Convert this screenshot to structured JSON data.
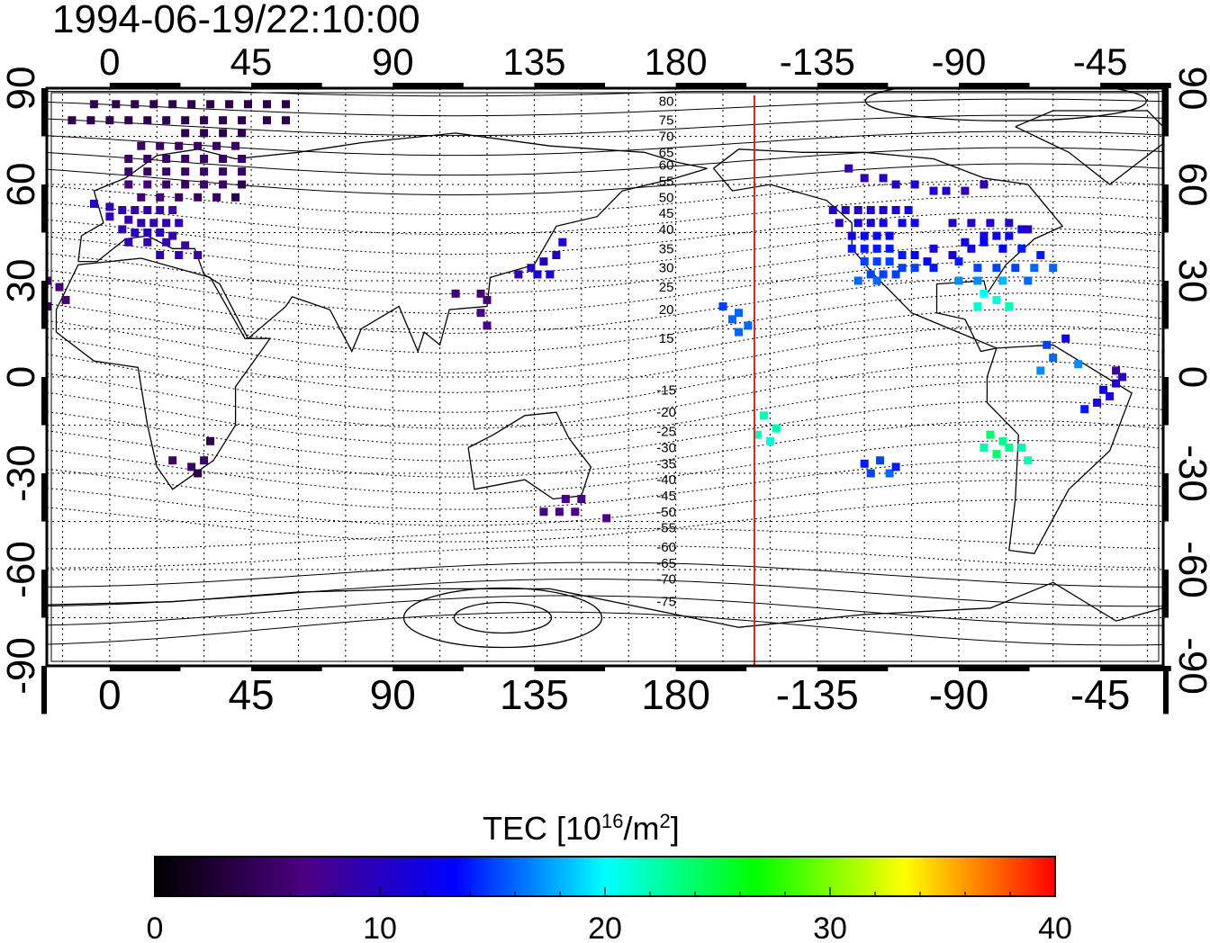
{
  "timestamp": "1994-06-19/22:10:00",
  "map": {
    "projection": "equirectangular",
    "x_tick_labels": [
      "0",
      "45",
      "90",
      "135",
      "180",
      "-135",
      "-90",
      "-45"
    ],
    "y_tick_labels": [
      "90",
      "60",
      "30",
      "0",
      "-30",
      "-60",
      "-90"
    ],
    "x_ticks_deg": [
      0,
      45,
      90,
      135,
      180,
      225,
      270,
      315
    ],
    "y_ticks_deg": [
      90,
      60,
      30,
      0,
      -30,
      -60,
      -90
    ],
    "lon_range": [
      -20,
      335
    ],
    "lat_range": [
      -90,
      90
    ],
    "grid_spacing_deg": 15,
    "grid": true,
    "marker_line_lon": 205,
    "marker_line_color": "#d42020",
    "contour_labels": [
      {
        "text": "80",
        "lat": 86
      },
      {
        "text": "75",
        "lat": 80
      },
      {
        "text": "70",
        "lat": 75
      },
      {
        "text": "65",
        "lat": 70
      },
      {
        "text": "60",
        "lat": 66
      },
      {
        "text": "55",
        "lat": 61
      },
      {
        "text": "50",
        "lat": 56
      },
      {
        "text": "45",
        "lat": 51
      },
      {
        "text": "40",
        "lat": 46
      },
      {
        "text": "35",
        "lat": 40
      },
      {
        "text": "30",
        "lat": 34
      },
      {
        "text": "25",
        "lat": 28
      },
      {
        "text": "20",
        "lat": 21
      },
      {
        "text": "15",
        "lat": 12
      },
      {
        "text": "-15",
        "lat": -4
      },
      {
        "text": "-20",
        "lat": -11
      },
      {
        "text": "-25",
        "lat": -17
      },
      {
        "text": "-30",
        "lat": -22
      },
      {
        "text": "-35",
        "lat": -27
      },
      {
        "text": "-40",
        "lat": -32
      },
      {
        "text": "-45",
        "lat": -37
      },
      {
        "text": "-50",
        "lat": -42
      },
      {
        "text": "-55",
        "lat": -47
      },
      {
        "text": "-60",
        "lat": -53
      },
      {
        "text": "-65",
        "lat": -58
      },
      {
        "text": "-70",
        "lat": -63
      },
      {
        "text": "-75",
        "lat": -70
      }
    ],
    "contour_label_lon": 177
  },
  "colorbar": {
    "title": "TEC  [10",
    "title_sup": "16",
    "title_mid": "/m",
    "title_sup2": "2",
    "title_end": "]",
    "min": 0,
    "max": 40,
    "tick_labels": [
      "0",
      "10",
      "20",
      "30",
      "40"
    ],
    "colors": [
      "#000000",
      "#4b0082",
      "#0000ff",
      "#00ffff",
      "#00ff00",
      "#ffff00",
      "#ff0000"
    ]
  },
  "tec_points": [
    [
      -5,
      85,
      4
    ],
    [
      2,
      85,
      4
    ],
    [
      8,
      85,
      4
    ],
    [
      14,
      85,
      4
    ],
    [
      20,
      85,
      4
    ],
    [
      26,
      85,
      4
    ],
    [
      32,
      85,
      4
    ],
    [
      38,
      85,
      4
    ],
    [
      44,
      85,
      4
    ],
    [
      50,
      85,
      4
    ],
    [
      56,
      85,
      4
    ],
    [
      -12,
      80,
      4
    ],
    [
      -6,
      80,
      4
    ],
    [
      0,
      80,
      4
    ],
    [
      6,
      80,
      4
    ],
    [
      12,
      80,
      4
    ],
    [
      18,
      80,
      4
    ],
    [
      24,
      80,
      4
    ],
    [
      30,
      80,
      4
    ],
    [
      36,
      80,
      4
    ],
    [
      42,
      80,
      4
    ],
    [
      50,
      80,
      4
    ],
    [
      56,
      80,
      4
    ],
    [
      24,
      76,
      4
    ],
    [
      30,
      76,
      4
    ],
    [
      36,
      76,
      4
    ],
    [
      42,
      76,
      4
    ],
    [
      10,
      72,
      5
    ],
    [
      16,
      72,
      5
    ],
    [
      22,
      72,
      5
    ],
    [
      28,
      72,
      5
    ],
    [
      34,
      72,
      5
    ],
    [
      40,
      72,
      5
    ],
    [
      6,
      68,
      5
    ],
    [
      12,
      68,
      5
    ],
    [
      18,
      68,
      5
    ],
    [
      24,
      68,
      5
    ],
    [
      30,
      68,
      5
    ],
    [
      36,
      68,
      5
    ],
    [
      42,
      68,
      5
    ],
    [
      6,
      64,
      5
    ],
    [
      12,
      64,
      5
    ],
    [
      18,
      64,
      5
    ],
    [
      24,
      64,
      5
    ],
    [
      30,
      64,
      5
    ],
    [
      36,
      64,
      5
    ],
    [
      42,
      64,
      5
    ],
    [
      6,
      60,
      6
    ],
    [
      12,
      60,
      6
    ],
    [
      18,
      60,
      5
    ],
    [
      24,
      60,
      5
    ],
    [
      30,
      60,
      5
    ],
    [
      36,
      60,
      5
    ],
    [
      42,
      60,
      4
    ],
    [
      10,
      56,
      6
    ],
    [
      16,
      56,
      6
    ],
    [
      22,
      56,
      5
    ],
    [
      28,
      56,
      5
    ],
    [
      34,
      56,
      5
    ],
    [
      40,
      56,
      4
    ],
    [
      -5,
      54,
      10
    ],
    [
      0,
      53,
      9
    ],
    [
      4,
      52,
      9
    ],
    [
      8,
      52,
      9
    ],
    [
      12,
      52,
      9
    ],
    [
      16,
      52,
      9
    ],
    [
      20,
      52,
      8
    ],
    [
      0,
      50,
      9
    ],
    [
      6,
      49,
      9
    ],
    [
      10,
      48,
      9
    ],
    [
      14,
      48,
      9
    ],
    [
      18,
      48,
      9
    ],
    [
      22,
      48,
      9
    ],
    [
      4,
      46,
      9
    ],
    [
      8,
      45,
      10
    ],
    [
      12,
      45,
      10
    ],
    [
      16,
      45,
      10
    ],
    [
      20,
      44,
      9
    ],
    [
      6,
      42,
      9
    ],
    [
      12,
      42,
      9
    ],
    [
      18,
      42,
      9
    ],
    [
      24,
      41,
      8
    ],
    [
      16,
      38,
      9
    ],
    [
      22,
      38,
      9
    ],
    [
      28,
      38,
      8
    ],
    [
      -20,
      30,
      6
    ],
    [
      -16,
      28,
      6
    ],
    [
      -14,
      24,
      6
    ],
    [
      -20,
      22,
      6
    ],
    [
      32,
      -20,
      4
    ],
    [
      20,
      -26,
      5
    ],
    [
      26,
      -28,
      5
    ],
    [
      30,
      -26,
      5
    ],
    [
      28,
      -30,
      4
    ],
    [
      110,
      26,
      6
    ],
    [
      118,
      26,
      6
    ],
    [
      120,
      24,
      6
    ],
    [
      118,
      20,
      7
    ],
    [
      120,
      16,
      7
    ],
    [
      130,
      32,
      9
    ],
    [
      134,
      34,
      10
    ],
    [
      138,
      36,
      10
    ],
    [
      142,
      38,
      10
    ],
    [
      144,
      42,
      11
    ],
    [
      136,
      32,
      11
    ],
    [
      140,
      32,
      11
    ],
    [
      145,
      -38,
      7
    ],
    [
      150,
      -38,
      7
    ],
    [
      138,
      -42,
      7
    ],
    [
      143,
      -42,
      7
    ],
    [
      148,
      -42,
      7
    ],
    [
      158,
      -44,
      7
    ],
    [
      195,
      22,
      15
    ],
    [
      200,
      20,
      16
    ],
    [
      198,
      18,
      16
    ],
    [
      203,
      16,
      16
    ],
    [
      200,
      14,
      16
    ],
    [
      208,
      -12,
      22
    ],
    [
      212,
      -16,
      22
    ],
    [
      206,
      -18,
      22
    ],
    [
      210,
      -20,
      21
    ],
    [
      245,
      -26,
      15
    ],
    [
      240,
      -27,
      14
    ],
    [
      248,
      -30,
      16
    ],
    [
      242,
      -30,
      15
    ],
    [
      250,
      -28,
      14
    ],
    [
      235,
      65,
      9
    ],
    [
      240,
      62,
      9
    ],
    [
      246,
      62,
      10
    ],
    [
      250,
      60,
      10
    ],
    [
      256,
      60,
      11
    ],
    [
      262,
      58,
      11
    ],
    [
      266,
      58,
      10
    ],
    [
      272,
      58,
      9
    ],
    [
      278,
      60,
      9
    ],
    [
      230,
      52,
      10
    ],
    [
      234,
      52,
      10
    ],
    [
      238,
      52,
      10
    ],
    [
      242,
      52,
      10
    ],
    [
      246,
      52,
      11
    ],
    [
      250,
      52,
      11
    ],
    [
      254,
      52,
      12
    ],
    [
      232,
      48,
      10
    ],
    [
      238,
      48,
      11
    ],
    [
      242,
      48,
      11
    ],
    [
      246,
      48,
      12
    ],
    [
      252,
      48,
      12
    ],
    [
      256,
      48,
      12
    ],
    [
      236,
      44,
      12
    ],
    [
      240,
      44,
      13
    ],
    [
      244,
      44,
      13
    ],
    [
      248,
      44,
      13
    ],
    [
      236,
      40,
      14
    ],
    [
      240,
      40,
      14
    ],
    [
      244,
      40,
      14
    ],
    [
      248,
      40,
      14
    ],
    [
      252,
      38,
      14
    ],
    [
      256,
      38,
      13
    ],
    [
      260,
      36,
      13
    ],
    [
      240,
      36,
      15
    ],
    [
      244,
      36,
      15
    ],
    [
      248,
      36,
      15
    ],
    [
      252,
      34,
      15
    ],
    [
      256,
      34,
      15
    ],
    [
      262,
      34,
      14
    ],
    [
      242,
      32,
      15
    ],
    [
      246,
      32,
      15
    ],
    [
      250,
      32,
      15
    ],
    [
      238,
      30,
      16
    ],
    [
      244,
      30,
      16
    ],
    [
      262,
      40,
      11
    ],
    [
      268,
      38,
      11
    ],
    [
      274,
      40,
      11
    ],
    [
      278,
      44,
      11
    ],
    [
      282,
      44,
      12
    ],
    [
      286,
      44,
      12
    ],
    [
      290,
      46,
      12
    ],
    [
      268,
      48,
      10
    ],
    [
      274,
      48,
      10
    ],
    [
      280,
      48,
      10
    ],
    [
      286,
      48,
      10
    ],
    [
      292,
      46,
      10
    ],
    [
      272,
      42,
      12
    ],
    [
      278,
      42,
      13
    ],
    [
      284,
      40,
      13
    ],
    [
      290,
      40,
      14
    ],
    [
      296,
      38,
      14
    ],
    [
      270,
      36,
      14
    ],
    [
      276,
      34,
      15
    ],
    [
      282,
      34,
      15
    ],
    [
      288,
      34,
      15
    ],
    [
      294,
      34,
      16
    ],
    [
      300,
      34,
      16
    ],
    [
      270,
      30,
      17
    ],
    [
      276,
      30,
      17
    ],
    [
      284,
      30,
      18
    ],
    [
      292,
      30,
      16
    ],
    [
      278,
      26,
      20
    ],
    [
      282,
      24,
      21
    ],
    [
      286,
      22,
      22
    ],
    [
      276,
      22,
      21
    ],
    [
      298,
      10,
      15
    ],
    [
      304,
      12,
      12
    ],
    [
      300,
      6,
      16
    ],
    [
      308,
      4,
      17
    ],
    [
      296,
      2,
      17
    ],
    [
      310,
      -10,
      14
    ],
    [
      314,
      -8,
      11
    ],
    [
      318,
      -6,
      11
    ],
    [
      316,
      -4,
      12
    ],
    [
      320,
      -2,
      11
    ],
    [
      322,
      0,
      10
    ],
    [
      320,
      2,
      8
    ],
    [
      280,
      -18,
      24
    ],
    [
      284,
      -20,
      23
    ],
    [
      286,
      -22,
      23
    ],
    [
      282,
      -24,
      24
    ],
    [
      278,
      -22,
      22
    ],
    [
      290,
      -22,
      22
    ],
    [
      292,
      -26,
      22
    ]
  ]
}
